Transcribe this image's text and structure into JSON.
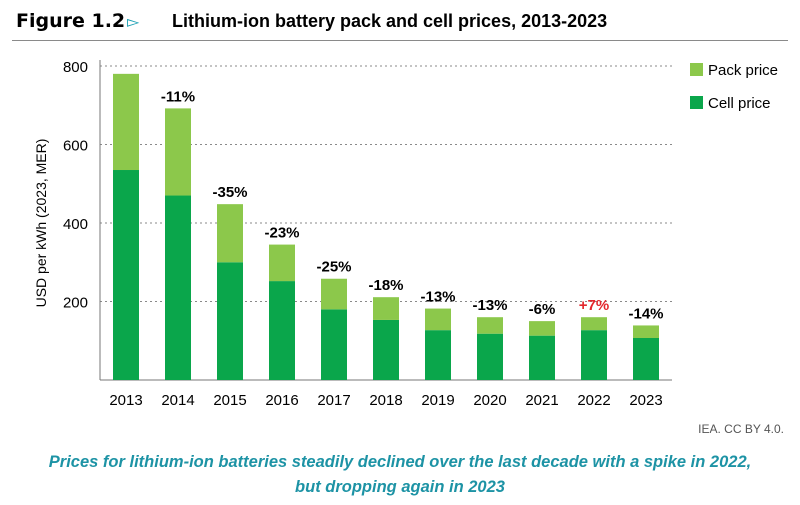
{
  "figure_label": "Figure 1.2",
  "figure_arrow": "▻",
  "title": "Lithium-ion battery pack and cell prices, 2013-2023",
  "source": "IEA. CC BY 4.0.",
  "caption_line1": "Prices for lithium-ion batteries steadily declined over the last decade with a spike in 2022,",
  "caption_line2": "but dropping again in 2023",
  "colors": {
    "pack": "#8cc84b",
    "cell": "#0aa64b",
    "grid": "#8a8a8a",
    "increase": "#e3262c",
    "accent": "#1d93a5"
  },
  "chart_data": {
    "type": "bar",
    "stacked": true,
    "categories": [
      "2013",
      "2014",
      "2015",
      "2016",
      "2017",
      "2018",
      "2019",
      "2020",
      "2021",
      "2022",
      "2023"
    ],
    "series": [
      {
        "name": "Cell price",
        "values": [
          535,
          470,
          300,
          252,
          180,
          153,
          127,
          118,
          113,
          127,
          107
        ]
      },
      {
        "name": "Pack price",
        "values": [
          245,
          222,
          148,
          93,
          78,
          58,
          55,
          42,
          37,
          33,
          32
        ]
      }
    ],
    "totals": [
      780,
      692,
      448,
      345,
      258,
      211,
      182,
      160,
      150,
      160,
      139
    ],
    "annotations": [
      "",
      "-11%",
      "-35%",
      "-23%",
      "-25%",
      "-18%",
      "-13%",
      "-13%",
      "-6%",
      "+7%",
      "-14%"
    ],
    "ylabel": "USD per kWh (2023, MER)",
    "xlabel": "",
    "ylim": [
      0,
      800
    ],
    "yticks": [
      200,
      400,
      600,
      800
    ],
    "legend": [
      "Pack price",
      "Cell price"
    ],
    "legend_position": "top-right"
  }
}
